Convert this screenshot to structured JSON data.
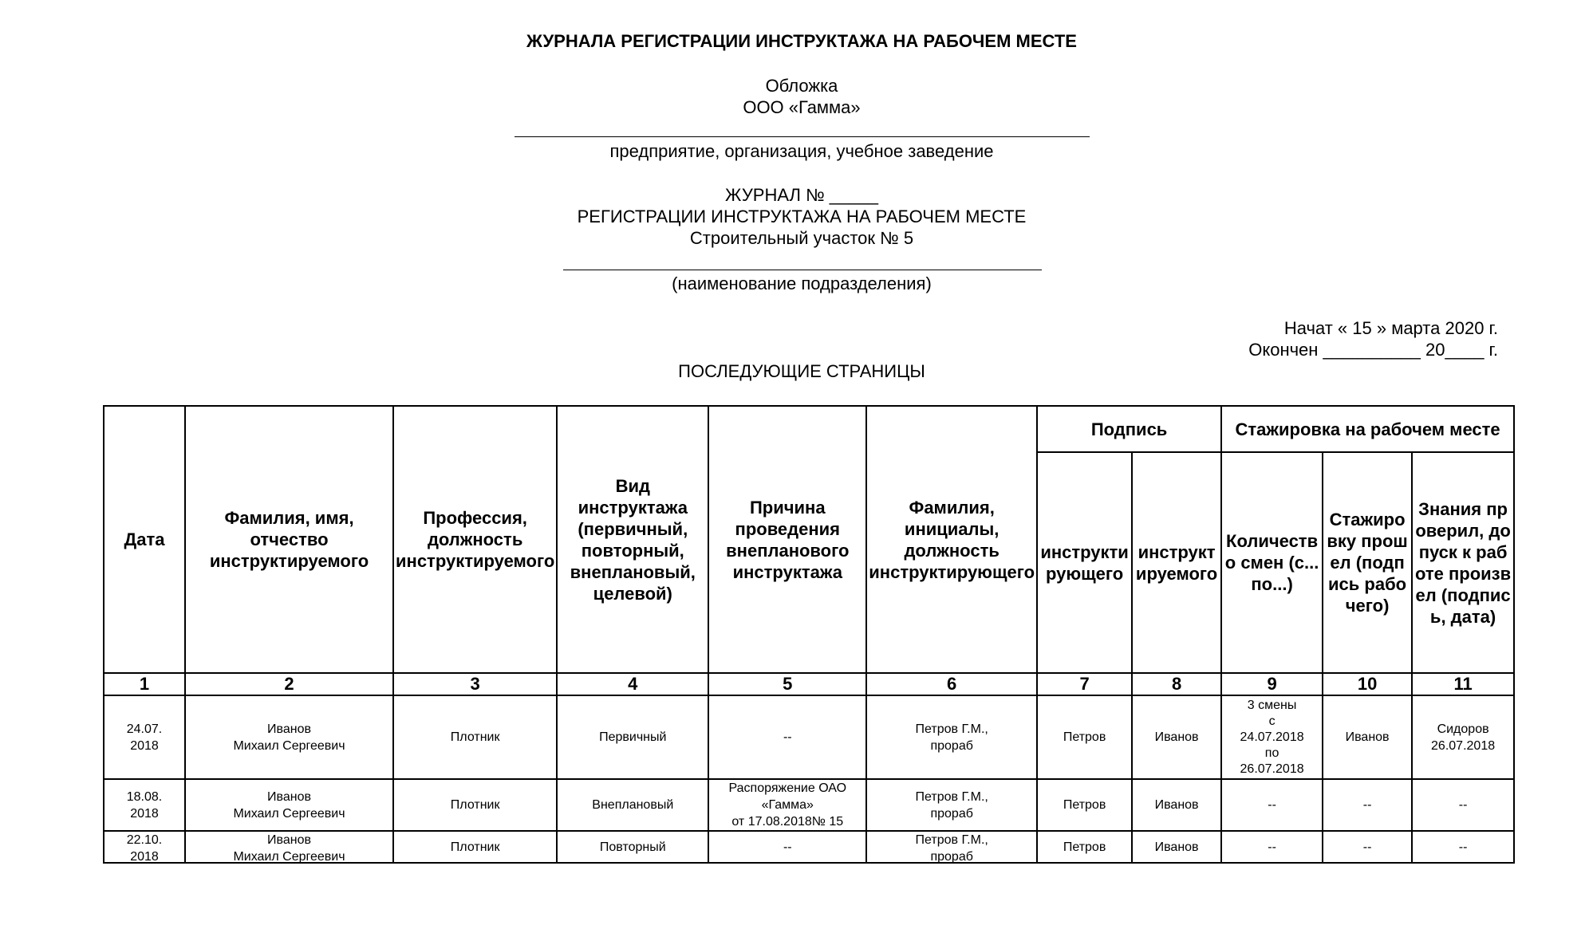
{
  "title": "ЖУРНАЛА РЕГИСТРАЦИИ ИНСТРУКТАЖА НА РАБОЧЕМ МЕСТЕ",
  "cover": {
    "label": "Обложка",
    "org": "ООО «Гамма»",
    "org_caption": "предприятие, организация, учебное заведение",
    "journal_no": "ЖУРНАЛ № _____",
    "journal_title": "РЕГИСТРАЦИИ ИНСТРУКТАЖА НА РАБОЧЕМ МЕСТЕ",
    "division": "Строительный участок № 5",
    "division_caption": "(наименование подразделения)",
    "started": "Начат  « 15 »  марта 2020 г.",
    "ended": "Окончен __________ 20____ г."
  },
  "subsequent_pages": "ПОСЛЕДУЮЩИЕ СТРАНИЦЫ",
  "table": {
    "headers": {
      "date": "Дата",
      "name": "Фамилия, имя, отчество инструктируемого",
      "profession": "Профессия, должность инструктируемого",
      "type": "Вид инструктажа (первичный, повторный, внеплановый, целевой)",
      "reason": "Причина проведения внепланового инструктажа",
      "instructor": "Фамилия, инициалы, должность инструктирующего",
      "signature": "Подпись",
      "sig_instructor": "инструктирующего",
      "sig_instructed": "инструктируемого",
      "internship": "Стажировка на рабочем месте",
      "shifts": "Количество смен (с... по...)",
      "passed": "Стажировку прошел (подпись рабочего)",
      "admitted": "Знания проверил, допуск к работе произвел (подпись, дата)"
    },
    "numbers": [
      "1",
      "2",
      "3",
      "4",
      "5",
      "6",
      "7",
      "8",
      "9",
      "10",
      "11"
    ],
    "rows": [
      [
        "24.07.\n2018",
        "Иванов\nМихаил Сергеевич",
        "Плотник",
        "Первичный",
        "--",
        "Петров Г.М.,\nпрораб",
        "Петров",
        "Иванов",
        "3 смены\nс\n24.07.2018\nпо\n26.07.2018",
        "Иванов",
        "Сидоров\n26.07.2018"
      ],
      [
        "18.08.\n2018",
        "Иванов\nМихаил Сергеевич",
        "Плотник",
        "Внеплановый",
        "Распоряжение ОАО\n«Гамма»\nот 17.08.2018№ 15",
        "Петров Г.М.,\nпрораб",
        "Петров",
        "Иванов",
        "--",
        "--",
        "--"
      ],
      [
        "22.10.\n2018",
        "Иванов\nМихаил Сергеевич",
        "Плотник",
        "Повторный",
        "--",
        "Петров Г.М.,\nпрораб",
        "Петров",
        "Иванов",
        "--",
        "--",
        "--"
      ]
    ]
  }
}
